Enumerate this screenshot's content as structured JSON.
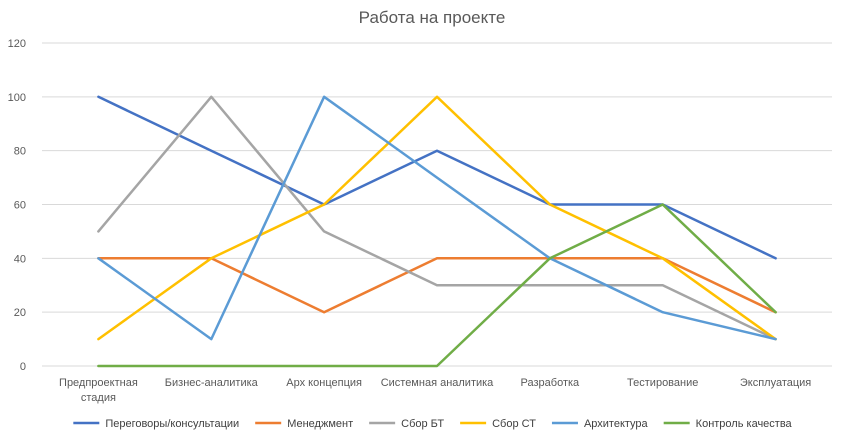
{
  "chart_data": {
    "type": "line",
    "title": "Работа на проекте",
    "xlabel": "",
    "ylabel": "",
    "ylim": [
      0,
      120
    ],
    "yticks": [
      0,
      20,
      40,
      60,
      80,
      100,
      120
    ],
    "grid": true,
    "legend_position": "bottom",
    "categories": [
      [
        "Предпроектная",
        "стадия"
      ],
      [
        "Бизнес-аналитика"
      ],
      [
        "Арх концепция"
      ],
      [
        "Системная аналитика"
      ],
      [
        "Разработка"
      ],
      [
        "Тестирование"
      ],
      [
        "Эксплуатация"
      ]
    ],
    "series": [
      {
        "name": "Переговоры/консультации",
        "color": "#4472C4",
        "values": [
          100,
          80,
          60,
          80,
          60,
          60,
          40
        ]
      },
      {
        "name": "Менеджмент",
        "color": "#ED7D31",
        "values": [
          40,
          40,
          20,
          40,
          40,
          40,
          20
        ]
      },
      {
        "name": "Сбор БТ",
        "color": "#A5A5A5",
        "values": [
          50,
          100,
          50,
          30,
          30,
          30,
          10
        ]
      },
      {
        "name": "Сбор СТ",
        "color": "#FFC000",
        "values": [
          10,
          40,
          60,
          100,
          60,
          40,
          10
        ]
      },
      {
        "name": "Архитектура",
        "color": "#5B9BD5",
        "values": [
          40,
          10,
          100,
          70,
          40,
          20,
          10
        ]
      },
      {
        "name": "Контроль качества",
        "color": "#70AD47",
        "values": [
          0,
          0,
          0,
          0,
          40,
          60,
          20
        ]
      }
    ]
  }
}
